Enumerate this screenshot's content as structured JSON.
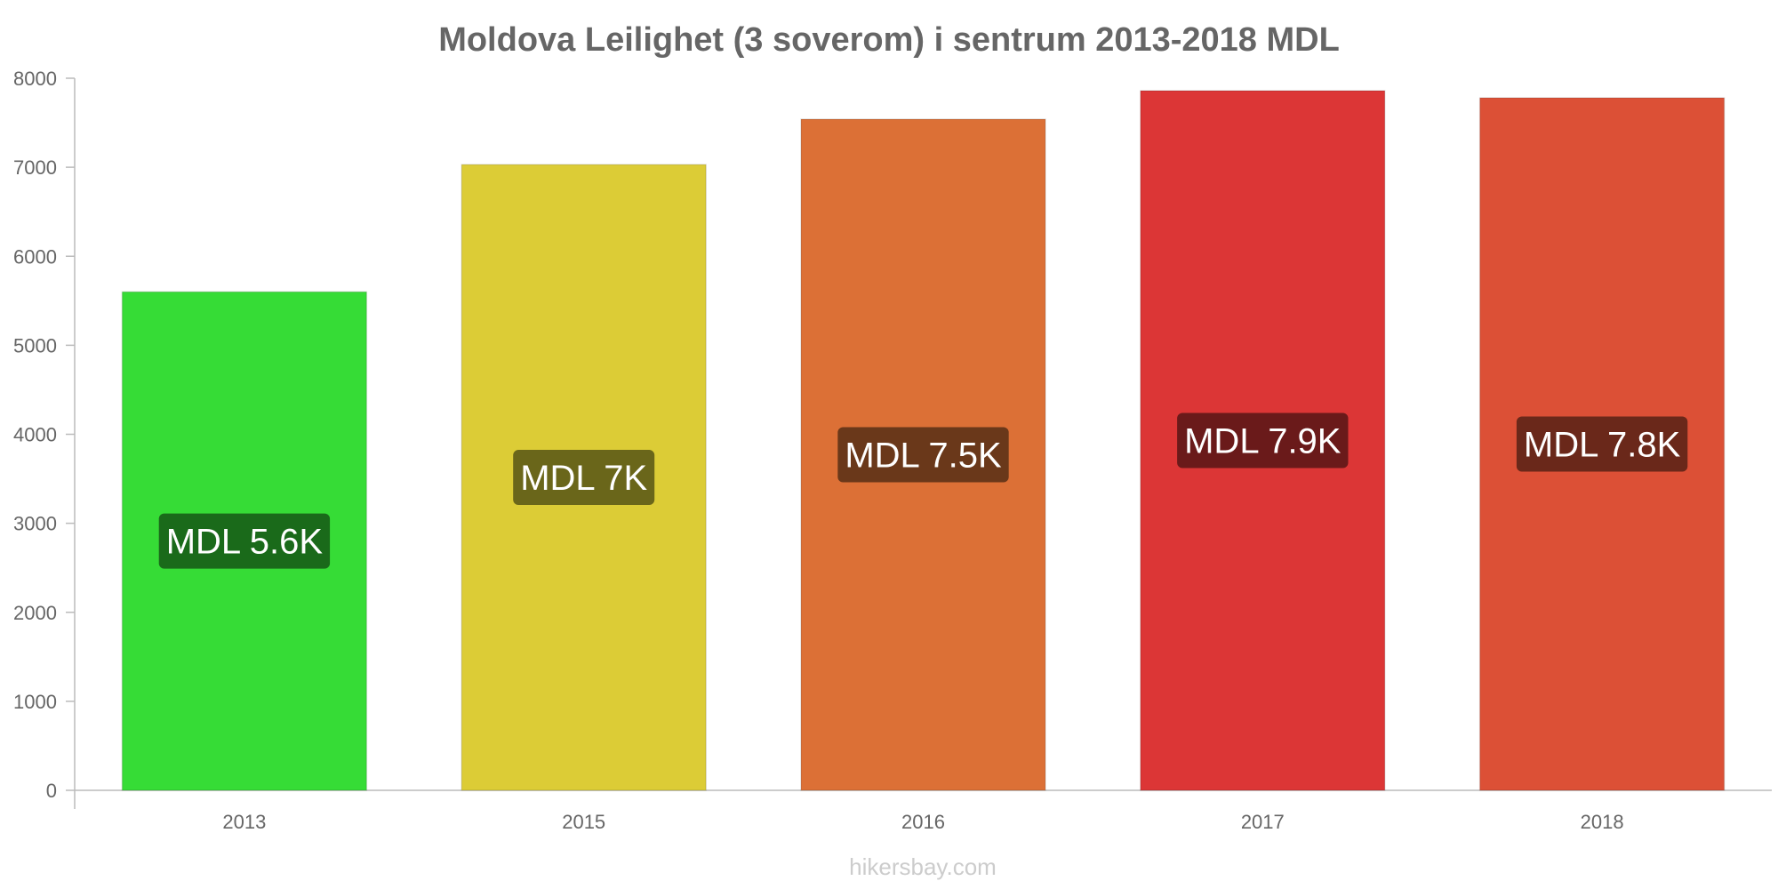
{
  "chart_data": {
    "type": "bar",
    "title": "Moldova Leilighet (3 soverom) i sentrum 2013-2018 MDL",
    "categories": [
      "2013",
      "2015",
      "2016",
      "2017",
      "2018"
    ],
    "values": [
      5600,
      7030,
      7540,
      7860,
      7780
    ],
    "data_labels": [
      "MDL 5.6K",
      "MDL 7K",
      "MDL 7.5K",
      "MDL 7.9K",
      "MDL 7.8K"
    ],
    "bar_colors": [
      "#36dc36",
      "#dccc36",
      "#dc7036",
      "#dc3636",
      "#dc5036"
    ],
    "label_colors": [
      "#1a6a1a",
      "#6a661a",
      "#6a381a",
      "#6a1a1a",
      "#6a281a"
    ],
    "yticks": [
      "0",
      "1000",
      "2000",
      "3000",
      "4000",
      "5000",
      "6000",
      "7000",
      "8000"
    ],
    "ylim": [
      0,
      8000
    ],
    "grid": false,
    "legend": "none"
  },
  "watermark": "hikersbay.com"
}
